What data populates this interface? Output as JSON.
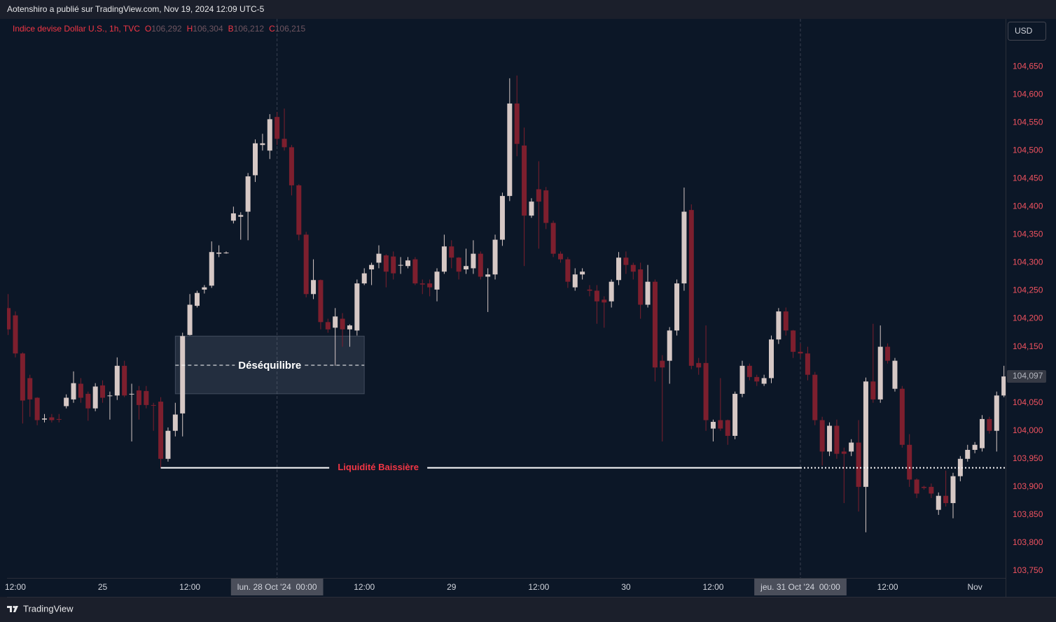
{
  "header": "Aotenshiro a publié sur TradingView.com, Nov 19, 2024 12:09 UTC-5",
  "footer": "TradingView",
  "chart_data": {
    "type": "candlestick",
    "currency": "USD",
    "legend": {
      "name": "Indice devise Dollar U.S., 1h, TVC",
      "ohlc": [
        {
          "key": "O",
          "value": "106,292"
        },
        {
          "key": "H",
          "value": "106,304"
        },
        {
          "key": "B",
          "value": "106,212"
        },
        {
          "key": "C",
          "value": "106,215"
        }
      ]
    },
    "up_color": "#d6c8c5",
    "down_color": "#7d1f2e",
    "grid": false,
    "categories": [
      null,
      "12:00",
      null,
      null,
      null,
      null,
      null,
      null,
      null,
      null,
      null,
      null,
      null,
      "25",
      null,
      null,
      null,
      null,
      null,
      null,
      null,
      null,
      null,
      null,
      null,
      "12:00",
      null,
      null,
      null,
      null,
      null,
      null,
      null,
      null,
      null,
      null,
      null,
      "lun. 28 Oct '24  00:00",
      null,
      null,
      null,
      null,
      null,
      null,
      null,
      null,
      null,
      null,
      null,
      "12:00",
      null,
      null,
      null,
      null,
      null,
      null,
      null,
      null,
      null,
      null,
      null,
      "29",
      null,
      null,
      null,
      null,
      null,
      null,
      null,
      null,
      null,
      null,
      null,
      "12:00",
      null,
      null,
      null,
      null,
      null,
      null,
      null,
      null,
      null,
      null,
      null,
      "30",
      null,
      null,
      null,
      null,
      null,
      null,
      null,
      null,
      null,
      null,
      null,
      "12:00",
      null,
      null,
      null,
      null,
      null,
      null,
      null,
      null,
      null,
      null,
      null,
      "jeu. 31 Oct '24  00:00",
      null,
      null,
      null,
      null,
      null,
      null,
      null,
      null,
      null,
      null,
      null,
      "12:00",
      null,
      null,
      null,
      null,
      null,
      null,
      null,
      null,
      null,
      null,
      null,
      "Nov",
      null,
      null,
      null,
      null
    ],
    "session_lines": [
      37,
      109
    ],
    "open": [
      104.219,
      104.206,
      104.138,
      104.094,
      104.059,
      104.02,
      104.024,
      104.021,
      104.044,
      104.056,
      104.084,
      104.066,
      104.04,
      104.081,
      104.062,
      104.063,
      104.116,
      104.065,
      104.072,
      104.071,
      104.046,
      104.052,
      103.95,
      104.0,
      104.031,
      104.171,
      104.223,
      104.252,
      104.259,
      104.316,
      104.318,
      104.375,
      104.382,
      104.391,
      104.456,
      104.51,
      104.5,
      104.56,
      104.521,
      104.506,
      104.438,
      104.35,
      104.244,
      104.269,
      104.194,
      104.184,
      104.2,
      104.181,
      104.179,
      104.263,
      104.288,
      104.3,
      104.313,
      104.311,
      104.296,
      104.294,
      104.306,
      104.263,
      104.263,
      104.252,
      104.284,
      104.329,
      104.309,
      104.288,
      104.29,
      104.316,
      104.275,
      104.279,
      104.341,
      104.419,
      104.584,
      104.509,
      104.384,
      104.431,
      104.429,
      104.371,
      104.316,
      104.306,
      104.256,
      104.279,
      104.252,
      104.25,
      104.234,
      104.231,
      104.269,
      104.309,
      104.296,
      104.288,
      104.225,
      104.266,
      104.125,
      104.125,
      104.179,
      104.263,
      104.394,
      104.121,
      104.121,
      104.004,
      104.019,
      104.019,
      103.991,
      104.066,
      104.116,
      104.096,
      104.084,
      104.094,
      104.163,
      104.213,
      104.179,
      104.141,
      104.138,
      104.1,
      104.019,
      103.963,
      104.009,
      103.963,
      103.963,
      103.979,
      103.9,
      104.088,
      104.056,
      104.15,
      104.075,
      104.075,
      103.975,
      103.913,
      103.9,
      103.9,
      103.859,
      103.884,
      103.871,
      103.919,
      103.95,
      103.966,
      103.969,
      104.021,
      104.0,
      104.063
    ],
    "high": [
      104.244,
      104.213,
      104.14,
      104.1,
      104.06,
      104.03,
      104.03,
      104.03,
      104.065,
      104.106,
      104.094,
      104.07,
      104.085,
      104.09,
      104.07,
      104.131,
      104.125,
      104.084,
      104.08,
      104.08,
      104.05,
      104.06,
      104.006,
      104.05,
      104.175,
      104.244,
      104.25,
      104.26,
      104.338,
      104.331,
      104.32,
      104.4,
      104.39,
      104.46,
      104.52,
      104.53,
      104.565,
      104.569,
      104.575,
      104.51,
      104.44,
      104.355,
      104.306,
      104.27,
      104.2,
      104.219,
      104.21,
      104.19,
      104.27,
      104.29,
      104.3,
      104.331,
      104.315,
      104.32,
      104.31,
      104.31,
      104.31,
      104.27,
      104.27,
      104.29,
      104.35,
      104.34,
      104.31,
      104.325,
      104.34,
      104.32,
      104.29,
      104.35,
      104.425,
      104.629,
      104.634,
      104.541,
      104.415,
      104.481,
      104.435,
      104.375,
      104.32,
      104.31,
      104.29,
      104.29,
      104.26,
      104.26,
      104.24,
      104.27,
      104.319,
      104.32,
      104.3,
      104.3,
      104.296,
      104.27,
      104.135,
      104.185,
      104.27,
      104.434,
      104.404,
      104.13,
      104.188,
      104.02,
      104.094,
      104.02,
      104.07,
      104.125,
      104.12,
      104.1,
      104.1,
      104.17,
      104.219,
      104.22,
      104.18,
      104.156,
      104.15,
      104.105,
      104.025,
      104.015,
      104.02,
      103.97,
      103.985,
      104.019,
      104.095,
      104.191,
      104.188,
      104.156,
      104.13,
      104.08,
      103.994,
      103.915,
      103.902,
      103.906,
      103.89,
      103.929,
      103.925,
      103.955,
      103.975,
      103.98,
      104.028,
      104.025,
      104.07,
      104.116
    ],
    "low": [
      104.171,
      104.131,
      104.013,
      104.025,
      104.01,
      104.015,
      104.015,
      104.015,
      104.04,
      104.05,
      104.05,
      104.018,
      104.035,
      104.05,
      104.02,
      104.055,
      104.06,
      103.981,
      104.02,
      104.04,
      104.0,
      103.934,
      103.945,
      103.99,
      103.99,
      104.17,
      104.22,
      104.245,
      104.255,
      104.31,
      104.316,
      104.37,
      104.341,
      104.34,
      104.444,
      104.5,
      104.485,
      104.51,
      104.5,
      104.42,
      104.34,
      104.238,
      104.235,
      104.181,
      104.175,
      104.116,
      104.15,
      104.15,
      104.17,
      104.26,
      104.26,
      104.29,
      104.256,
      104.27,
      104.28,
      104.29,
      104.26,
      104.244,
      104.24,
      104.231,
      104.28,
      104.29,
      104.27,
      104.28,
      104.28,
      104.27,
      104.212,
      104.27,
      104.33,
      104.41,
      104.49,
      104.294,
      104.38,
      104.325,
      104.36,
      104.31,
      104.3,
      104.255,
      104.25,
      104.27,
      104.24,
      104.191,
      104.184,
      104.22,
      104.26,
      104.28,
      104.27,
      104.2,
      104.22,
      104.088,
      103.981,
      104.084,
      104.17,
      104.25,
      104.11,
      104.1,
      104.0,
      103.981,
      104.0,
      103.975,
      103.985,
      104.06,
      104.09,
      104.08,
      104.08,
      104.085,
      104.155,
      104.17,
      104.13,
      104.13,
      104.09,
      104.01,
      103.938,
      103.955,
      103.95,
      103.871,
      103.955,
      103.856,
      103.819,
      104.05,
      104.05,
      104.12,
      104.07,
      103.97,
      103.9,
      103.88,
      103.895,
      103.88,
      103.85,
      103.865,
      103.844,
      103.91,
      103.945,
      103.96,
      103.963,
      103.995,
      103.963,
      104.06
    ],
    "close": [
      104.181,
      104.138,
      104.054,
      104.056,
      104.019,
      104.022,
      104.019,
      104.02,
      104.059,
      104.085,
      104.059,
      104.04,
      104.079,
      104.059,
      104.063,
      104.116,
      104.063,
      104.066,
      104.046,
      104.046,
      104.045,
      103.95,
      104.0,
      104.029,
      104.169,
      104.225,
      104.246,
      104.256,
      104.319,
      104.318,
      104.318,
      104.388,
      104.385,
      104.454,
      104.513,
      104.513,
      104.556,
      104.521,
      104.506,
      104.438,
      104.35,
      104.244,
      104.269,
      104.194,
      104.181,
      104.204,
      104.181,
      104.188,
      104.263,
      104.281,
      104.296,
      104.316,
      104.284,
      104.281,
      104.296,
      104.304,
      104.263,
      104.261,
      104.256,
      104.284,
      104.329,
      104.309,
      104.284,
      104.294,
      104.316,
      104.275,
      104.279,
      104.341,
      104.419,
      104.584,
      104.512,
      104.384,
      104.409,
      104.409,
      104.371,
      104.316,
      104.306,
      104.266,
      104.279,
      104.284,
      104.25,
      104.231,
      104.229,
      104.266,
      104.309,
      104.296,
      104.284,
      104.225,
      104.266,
      104.113,
      104.113,
      104.179,
      104.263,
      104.391,
      104.116,
      104.113,
      104.019,
      104.016,
      104.004,
      103.991,
      104.066,
      104.116,
      104.096,
      104.088,
      104.094,
      104.163,
      104.213,
      104.179,
      104.141,
      104.138,
      104.1,
      104.019,
      103.963,
      104.009,
      103.959,
      103.959,
      103.979,
      103.9,
      104.088,
      104.056,
      104.15,
      104.125,
      104.125,
      103.975,
      103.913,
      103.888,
      103.898,
      103.888,
      103.884,
      103.871,
      103.919,
      103.95,
      103.966,
      103.975,
      104.021,
      104.0,
      104.063,
      104.097
    ],
    "ylim": [
      103.7375,
      104.735
    ],
    "yticks": [
      {
        "value": 103.75,
        "label": "103,750"
      },
      {
        "value": 103.8,
        "label": "103,800"
      },
      {
        "value": 103.85,
        "label": "103,850"
      },
      {
        "value": 103.9,
        "label": "103,900"
      },
      {
        "value": 103.95,
        "label": "103,950"
      },
      {
        "value": 104.0,
        "label": "104,000"
      },
      {
        "value": 104.05,
        "label": "104,050"
      },
      {
        "value": 104.1,
        "label": "104,100"
      },
      {
        "value": 104.15,
        "label": "104,150"
      },
      {
        "value": 104.2,
        "label": "104,200"
      },
      {
        "value": 104.25,
        "label": "104,250"
      },
      {
        "value": 104.3,
        "label": "104,300"
      },
      {
        "value": 104.35,
        "label": "104,350"
      },
      {
        "value": 104.4,
        "label": "104,400"
      },
      {
        "value": 104.45,
        "label": "104,450"
      },
      {
        "value": 104.5,
        "label": "104,500"
      },
      {
        "value": 104.55,
        "label": "104,550"
      },
      {
        "value": 104.6,
        "label": "104,600"
      },
      {
        "value": 104.65,
        "label": "104,650"
      }
    ],
    "last_price": {
      "value": 104.097,
      "label": "104,097"
    },
    "zone": {
      "text": "Déséquilibre",
      "high": 104.169,
      "low": 104.066,
      "mid": 104.117,
      "from": 23,
      "to": 49
    },
    "liquidity": {
      "text": "Liquidité Baissière",
      "value": 103.934,
      "from": 21,
      "to": 109
    }
  }
}
